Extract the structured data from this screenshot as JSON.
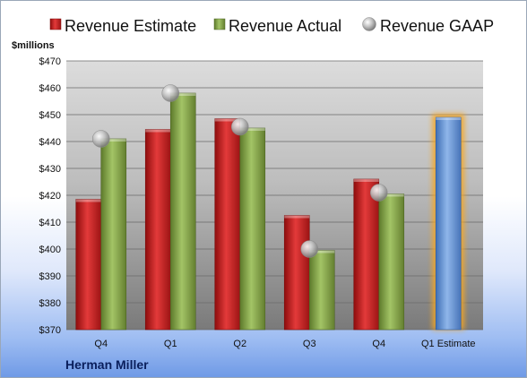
{
  "chart_data": {
    "type": "bar",
    "ylabel": "$millions",
    "ylim": [
      370,
      470
    ],
    "yticks": [
      370,
      380,
      390,
      400,
      410,
      420,
      430,
      440,
      450,
      460,
      470
    ],
    "categories": [
      "Q4",
      "Q1",
      "Q2",
      "Q3",
      "Q4",
      "Q1 Estimate"
    ],
    "series": [
      {
        "name": "Revenue Estimate",
        "type": "bar",
        "color": "#d42a2a",
        "values": [
          418.5,
          444.5,
          448.5,
          412.5,
          426,
          null
        ]
      },
      {
        "name": "Revenue Actual",
        "type": "bar",
        "color": "#86a84a",
        "values": [
          441,
          458,
          445,
          399.5,
          420.5,
          null
        ]
      },
      {
        "name": "Revenue GAAP",
        "type": "scatter",
        "color": "#b5b5b5",
        "values": [
          441,
          458,
          445.5,
          400,
          421,
          null
        ]
      },
      {
        "name": "",
        "type": "bar",
        "color": "#6d9ad6",
        "highlight": "#f5a623",
        "values": [
          null,
          null,
          null,
          null,
          null,
          449
        ]
      }
    ],
    "grid": true,
    "legend": "top"
  },
  "footer": {
    "company": "Herman Miller"
  }
}
